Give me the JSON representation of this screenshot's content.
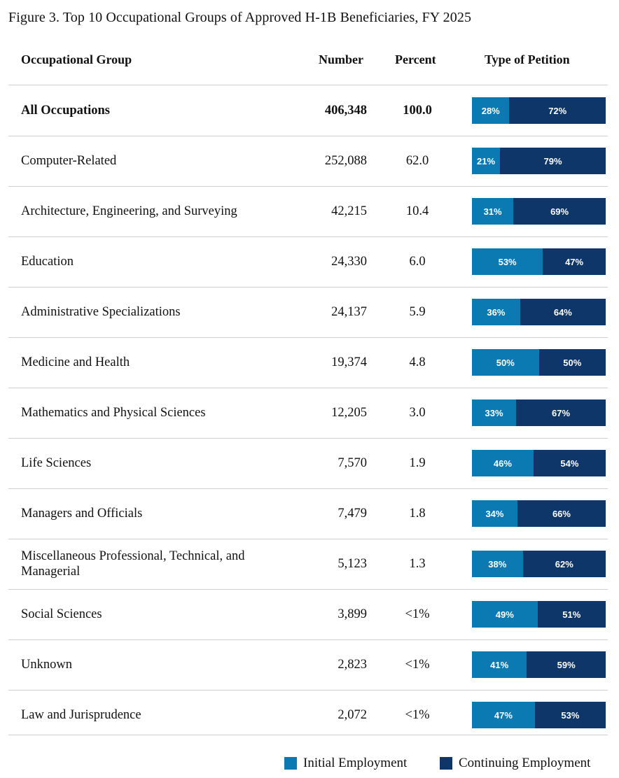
{
  "title": "Figure 3. Top 10 Occupational Groups of Approved H-1B Beneficiaries, FY 2025",
  "headers": {
    "group": "Occupational Group",
    "number": "Number",
    "percent": "Percent",
    "type": "Type of Petition"
  },
  "colors": {
    "initial": "#0b7ab3",
    "continuing": "#0e3668"
  },
  "chart_data": {
    "type": "table",
    "title": "Figure 3. Top 10 Occupational Groups of Approved H-1B Beneficiaries, FY 2025",
    "legend": [
      "Initial Employment",
      "Continuing Employment"
    ],
    "legend_position": "bottom-right",
    "rows": [
      {
        "group": "All Occupations",
        "number": "406,348",
        "percent": "100.0",
        "initial": 28,
        "continuing": 72,
        "bold": true
      },
      {
        "group": "Computer-Related",
        "number": "252,088",
        "percent": "62.0",
        "initial": 21,
        "continuing": 79
      },
      {
        "group": "Architecture, Engineering, and Surveying",
        "number": "42,215",
        "percent": "10.4",
        "initial": 31,
        "continuing": 69
      },
      {
        "group": "Education",
        "number": "24,330",
        "percent": "6.0",
        "initial": 53,
        "continuing": 47
      },
      {
        "group": "Administrative Specializations",
        "number": "24,137",
        "percent": "5.9",
        "initial": 36,
        "continuing": 64
      },
      {
        "group": "Medicine and Health",
        "number": "19,374",
        "percent": "4.8",
        "initial": 50,
        "continuing": 50
      },
      {
        "group": "Mathematics and Physical Sciences",
        "number": "12,205",
        "percent": "3.0",
        "initial": 33,
        "continuing": 67
      },
      {
        "group": "Life Sciences",
        "number": "7,570",
        "percent": "1.9",
        "initial": 46,
        "continuing": 54
      },
      {
        "group": "Managers and Officials",
        "number": "7,479",
        "percent": "1.8",
        "initial": 34,
        "continuing": 66
      },
      {
        "group": "Miscellaneous Professional, Technical, and Managerial",
        "number": "5,123",
        "percent": "1.3",
        "initial": 38,
        "continuing": 62
      },
      {
        "group": "Social Sciences",
        "number": "3,899",
        "percent": "<1%",
        "initial": 49,
        "continuing": 51
      },
      {
        "group": "Unknown",
        "number": "2,823",
        "percent": "<1%",
        "initial": 41,
        "continuing": 59
      },
      {
        "group": "Law and Jurisprudence",
        "number": "2,072",
        "percent": "<1%",
        "initial": 47,
        "continuing": 53
      }
    ]
  }
}
